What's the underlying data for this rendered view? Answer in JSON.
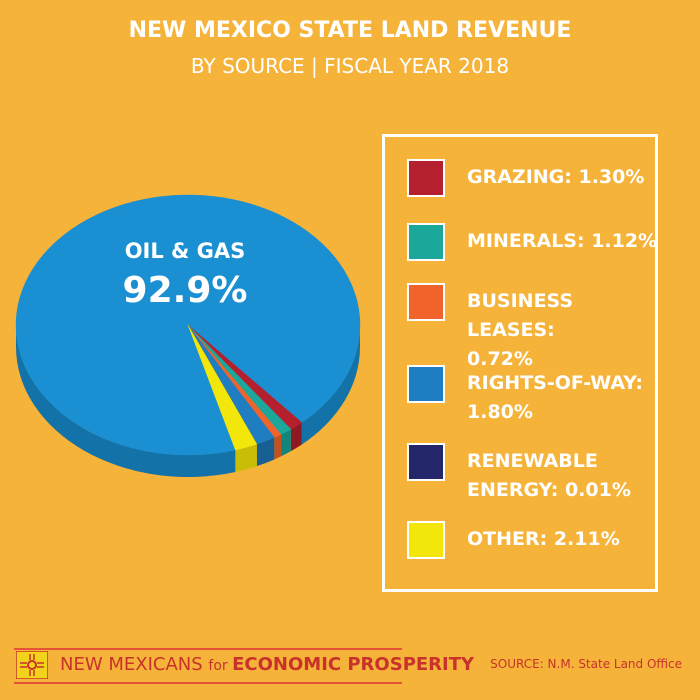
{
  "header": {
    "title": "NEW MEXICO STATE LAND REVENUE",
    "subtitle": "BY SOURCE | FISCAL YEAR 2018"
  },
  "chart_data": {
    "type": "pie",
    "style": "3d",
    "title": "NEW MEXICO STATE LAND REVENUE",
    "subtitle": "BY SOURCE | FISCAL YEAR 2018",
    "slices": [
      {
        "name": "OIL & GAS",
        "value": 92.9,
        "color": "#1A8FD1",
        "side_color": "#1372A8"
      },
      {
        "name": "GRAZING",
        "value": 1.3,
        "color": "#B5202E",
        "side_color": "#8E1823"
      },
      {
        "name": "MINERALS",
        "value": 1.12,
        "color": "#1BA79A",
        "side_color": "#13857A"
      },
      {
        "name": "BUSINESS LEASES",
        "value": 0.72,
        "color": "#F0642C",
        "side_color": "#C44F1F"
      },
      {
        "name": "RIGHTS-OF-WAY",
        "value": 1.8,
        "color": "#1F7DC1",
        "side_color": "#185F93"
      },
      {
        "name": "RENEWABLE ENERGY",
        "value": 0.01,
        "color": "#24266A",
        "side_color": "#1A1C4E"
      },
      {
        "name": "OTHER",
        "value": 2.11,
        "color": "#F2E60A",
        "side_color": "#C8BE08"
      }
    ],
    "main_label": {
      "name": "OIL & GAS",
      "value_text": "92.9%"
    },
    "legend_placement": "right"
  },
  "legend": {
    "items": [
      {
        "line1": "GRAZING: 1.30%",
        "line2": "",
        "color": "#B5202E"
      },
      {
        "line1": "MINERALS: 1.12%",
        "line2": "",
        "color": "#1BA79A"
      },
      {
        "line1": "BUSINESS LEASES:",
        "line2": "0.72%",
        "color": "#F0642C"
      },
      {
        "line1": "RIGHTS-OF-WAY:",
        "line2": "1.80%",
        "color": "#1F7DC1"
      },
      {
        "line1": "RENEWABLE",
        "line2": "ENERGY: 0.01%",
        "color": "#24266A"
      },
      {
        "line1": "OTHER: 2.11%",
        "line2": "",
        "color": "#F2E60A"
      }
    ]
  },
  "footer": {
    "brand_part1": "NEW MEXICANS ",
    "brand_part2": "for ",
    "brand_part3": "ECONOMIC PROSPERITY",
    "source": "SOURCE: N.M. State Land Office"
  },
  "colors": {
    "background": "#F6B33A",
    "accent": "#C8322A"
  }
}
